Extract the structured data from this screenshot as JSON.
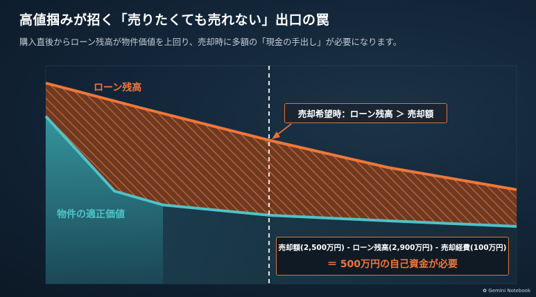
{
  "header": {
    "title": "高値掴みが招く「売りたくても売れない」出口の罠",
    "subtitle": "購入直後からローン残高が物件価値を上回り、売却時に多額の「現金の手出し」が必要になります。"
  },
  "labels": {
    "loan_balance": "ローン残高",
    "property_value": "物件の適正価値"
  },
  "callout": {
    "text": "売却希望時：ローン残高 ＞ 売却額"
  },
  "formula": {
    "line1": "売却額(2,500万円) - ローン残高(2,900万円) - 売却経費(100万円)",
    "line2": "＝ 500万円の自己資金が必要"
  },
  "brand": {
    "text": "Gemini Notebook"
  },
  "colors": {
    "loan_line": "#f0773a",
    "value_line": "#4fc3c8",
    "gap_fill": "#c85a2a",
    "accent_border": "#e2733a"
  }
}
